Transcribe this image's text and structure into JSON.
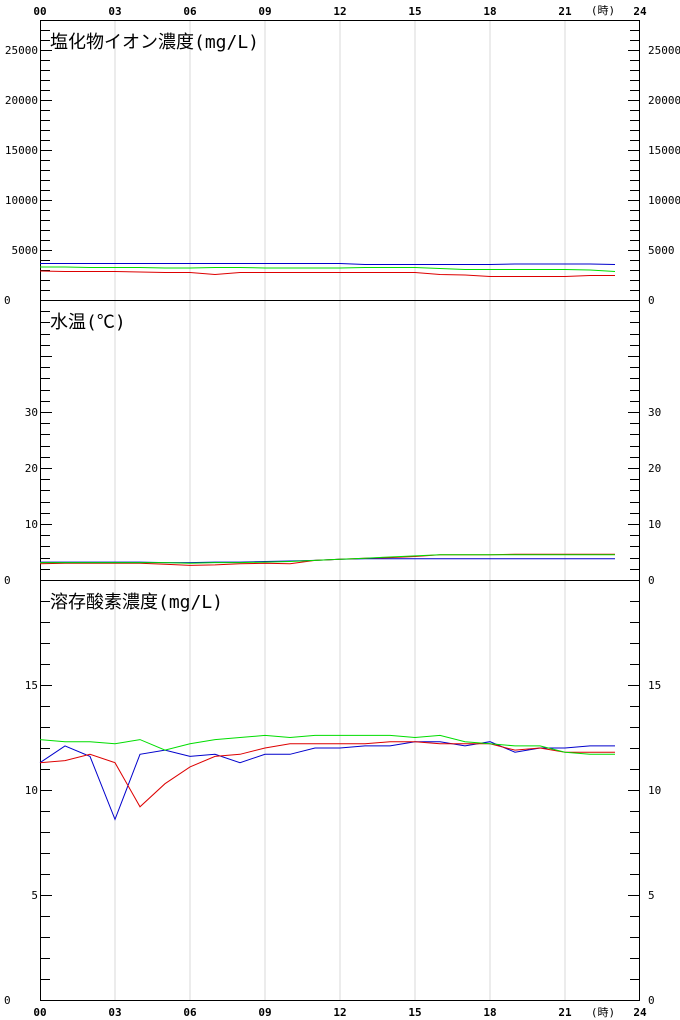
{
  "chart_data": [
    {
      "type": "line",
      "title": "塩化物イオン濃度(mg/L)",
      "x_ticks": [
        "00",
        "03",
        "06",
        "09",
        "12",
        "15",
        "18",
        "21",
        "24"
      ],
      "x_unit": "(時)",
      "y_ticks": [
        "0",
        "5000",
        "10000",
        "15000",
        "20000",
        "25000"
      ],
      "ylim": [
        0,
        28000
      ],
      "x": [
        0,
        1,
        2,
        3,
        4,
        5,
        6,
        7,
        8,
        9,
        10,
        11,
        12,
        13,
        14,
        15,
        16,
        17,
        18,
        19,
        20,
        21,
        22,
        23
      ],
      "series": [
        {
          "color": "#0000cc",
          "values": [
            3650,
            3650,
            3650,
            3650,
            3650,
            3650,
            3650,
            3650,
            3650,
            3650,
            3650,
            3650,
            3650,
            3550,
            3550,
            3550,
            3550,
            3550,
            3550,
            3600,
            3600,
            3600,
            3600,
            3550
          ]
        },
        {
          "color": "#00dd00",
          "values": [
            3300,
            3300,
            3250,
            3250,
            3250,
            3200,
            3200,
            3250,
            3250,
            3200,
            3200,
            3200,
            3200,
            3250,
            3250,
            3250,
            3150,
            3050,
            3050,
            3050,
            3050,
            3050,
            3000,
            2850
          ]
        },
        {
          "color": "#dd0000",
          "values": [
            2900,
            2850,
            2850,
            2850,
            2800,
            2750,
            2750,
            2550,
            2750,
            2750,
            2750,
            2750,
            2750,
            2750,
            2750,
            2750,
            2550,
            2500,
            2350,
            2350,
            2350,
            2350,
            2450,
            2450
          ]
        }
      ]
    },
    {
      "type": "line",
      "title": "水温(℃)",
      "x_ticks": [
        "00",
        "03",
        "06",
        "09",
        "12",
        "15",
        "18",
        "21",
        "24"
      ],
      "y_ticks": [
        "0",
        "10",
        "20",
        "30"
      ],
      "ylim": [
        0,
        50
      ],
      "x": [
        0,
        1,
        2,
        3,
        4,
        5,
        6,
        7,
        8,
        9,
        10,
        11,
        12,
        13,
        14,
        15,
        16,
        17,
        18,
        19,
        20,
        21,
        22,
        23
      ],
      "series": [
        {
          "color": "#0000cc",
          "values": [
            3.2,
            3.2,
            3.2,
            3.2,
            3.2,
            3.1,
            3.1,
            3.2,
            3.2,
            3.3,
            3.4,
            3.5,
            3.7,
            3.8,
            3.8,
            3.8,
            3.8,
            3.8,
            3.8,
            3.8,
            3.8,
            3.8,
            3.8,
            3.8
          ]
        },
        {
          "color": "#dd0000",
          "values": [
            2.9,
            3.0,
            3.0,
            3.0,
            3.0,
            2.8,
            2.6,
            2.7,
            2.9,
            3.0,
            2.9,
            3.5,
            3.7,
            3.9,
            4.0,
            4.2,
            4.5,
            4.5,
            4.5,
            4.6,
            4.6,
            4.6,
            4.6,
            4.6
          ]
        },
        {
          "color": "#00dd00",
          "values": [
            3.1,
            3.1,
            3.1,
            3.1,
            3.1,
            3.1,
            3.0,
            3.1,
            3.1,
            3.2,
            3.3,
            3.5,
            3.7,
            3.9,
            4.1,
            4.3,
            4.5,
            4.5,
            4.5,
            4.5,
            4.5,
            4.5,
            4.5,
            4.5
          ]
        }
      ]
    },
    {
      "type": "line",
      "title": "溶存酸素濃度(mg/L)",
      "x_ticks": [
        "00",
        "03",
        "06",
        "09",
        "12",
        "15",
        "18",
        "21",
        "24"
      ],
      "x_unit": "(時)",
      "y_ticks": [
        "0",
        "5",
        "10",
        "15"
      ],
      "ylim": [
        0,
        20
      ],
      "x": [
        0,
        1,
        2,
        3,
        4,
        5,
        6,
        7,
        8,
        9,
        10,
        11,
        12,
        13,
        14,
        15,
        16,
        17,
        18,
        19,
        20,
        21,
        22,
        23
      ],
      "series": [
        {
          "color": "#0000cc",
          "values": [
            11.3,
            12.1,
            11.6,
            8.6,
            11.7,
            11.9,
            11.6,
            11.7,
            11.3,
            11.7,
            11.7,
            12.0,
            12.0,
            12.1,
            12.1,
            12.3,
            12.3,
            12.1,
            12.3,
            11.8,
            12.0,
            12.0,
            12.1,
            12.1
          ]
        },
        {
          "color": "#dd0000",
          "values": [
            11.3,
            11.4,
            11.7,
            11.3,
            9.2,
            10.3,
            11.1,
            11.6,
            11.7,
            12.0,
            12.2,
            12.2,
            12.2,
            12.2,
            12.3,
            12.3,
            12.2,
            12.2,
            12.2,
            11.9,
            12.0,
            11.8,
            11.8,
            11.8
          ]
        },
        {
          "color": "#00dd00",
          "values": [
            12.4,
            12.3,
            12.3,
            12.2,
            12.4,
            11.9,
            12.2,
            12.4,
            12.5,
            12.6,
            12.5,
            12.6,
            12.6,
            12.6,
            12.6,
            12.5,
            12.6,
            12.3,
            12.2,
            12.1,
            12.1,
            11.8,
            11.7,
            11.7
          ]
        }
      ]
    }
  ]
}
